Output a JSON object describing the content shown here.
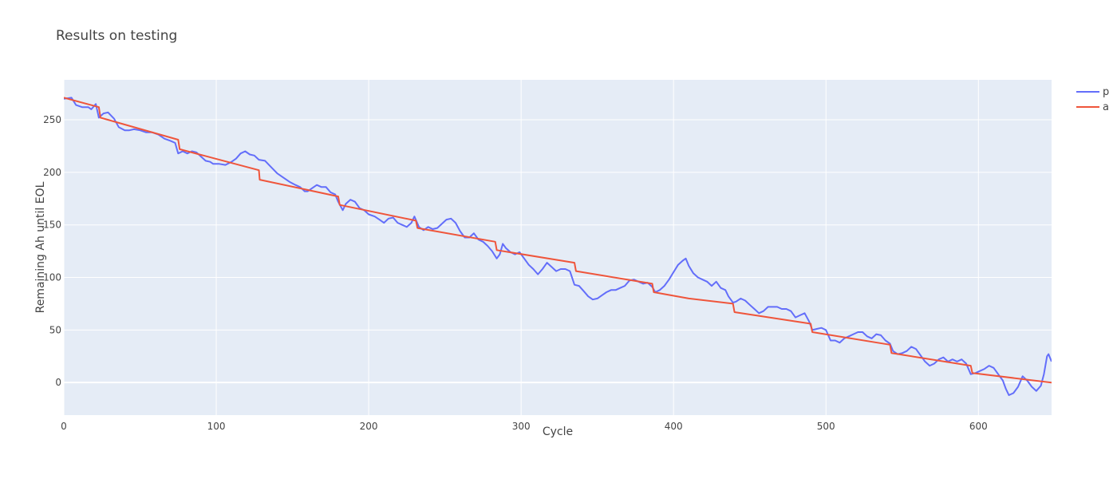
{
  "chart_data": {
    "type": "line",
    "title": "Results on testing",
    "xlabel": "Cycle",
    "ylabel": "Remaining Ah until EOL",
    "xlim": [
      0,
      648
    ],
    "ylim": [
      -31,
      288
    ],
    "xticks": [
      0,
      100,
      200,
      300,
      400,
      500,
      600
    ],
    "yticks": [
      0,
      50,
      100,
      150,
      200,
      250
    ],
    "grid": true,
    "legend_position": "top-right",
    "background_color": "#e5ecf6",
    "series": [
      {
        "name": "p",
        "color": "#636efa",
        "points": [
          [
            0,
            270
          ],
          [
            5,
            271
          ],
          [
            8,
            264
          ],
          [
            12,
            262
          ],
          [
            16,
            262
          ],
          [
            18,
            260
          ],
          [
            21,
            265
          ],
          [
            23,
            252
          ],
          [
            26,
            256
          ],
          [
            29,
            257
          ],
          [
            33,
            251
          ],
          [
            36,
            243
          ],
          [
            40,
            240
          ],
          [
            43,
            240
          ],
          [
            46,
            241
          ],
          [
            50,
            240
          ],
          [
            54,
            238
          ],
          [
            58,
            238
          ],
          [
            62,
            236
          ],
          [
            66,
            232
          ],
          [
            70,
            230
          ],
          [
            73,
            228
          ],
          [
            75,
            218
          ],
          [
            78,
            220
          ],
          [
            81,
            218
          ],
          [
            84,
            220
          ],
          [
            87,
            219
          ],
          [
            90,
            215
          ],
          [
            93,
            211
          ],
          [
            96,
            210
          ],
          [
            98,
            208
          ],
          [
            102,
            208
          ],
          [
            106,
            207
          ],
          [
            110,
            210
          ],
          [
            113,
            213
          ],
          [
            116,
            218
          ],
          [
            119,
            220
          ],
          [
            122,
            217
          ],
          [
            125,
            216
          ],
          [
            128,
            212
          ],
          [
            132,
            211
          ],
          [
            136,
            205
          ],
          [
            140,
            199
          ],
          [
            144,
            195
          ],
          [
            148,
            191
          ],
          [
            152,
            188
          ],
          [
            155,
            186
          ],
          [
            158,
            182
          ],
          [
            160,
            182
          ],
          [
            163,
            185
          ],
          [
            166,
            188
          ],
          [
            169,
            186
          ],
          [
            172,
            186
          ],
          [
            175,
            181
          ],
          [
            178,
            179
          ],
          [
            180,
            172
          ],
          [
            183,
            164
          ],
          [
            185,
            170
          ],
          [
            188,
            174
          ],
          [
            191,
            172
          ],
          [
            194,
            166
          ],
          [
            197,
            164
          ],
          [
            200,
            160
          ],
          [
            204,
            158
          ],
          [
            207,
            155
          ],
          [
            210,
            152
          ],
          [
            213,
            156
          ],
          [
            216,
            157
          ],
          [
            219,
            152
          ],
          [
            222,
            150
          ],
          [
            225,
            148
          ],
          [
            228,
            152
          ],
          [
            230,
            158
          ],
          [
            233,
            148
          ],
          [
            236,
            145
          ],
          [
            239,
            148
          ],
          [
            242,
            146
          ],
          [
            245,
            147
          ],
          [
            248,
            151
          ],
          [
            251,
            155
          ],
          [
            254,
            156
          ],
          [
            257,
            152
          ],
          [
            260,
            144
          ],
          [
            263,
            138
          ],
          [
            266,
            138
          ],
          [
            269,
            142
          ],
          [
            272,
            136
          ],
          [
            275,
            134
          ],
          [
            278,
            130
          ],
          [
            281,
            125
          ],
          [
            284,
            118
          ],
          [
            286,
            122
          ],
          [
            288,
            132
          ],
          [
            290,
            128
          ],
          [
            293,
            124
          ],
          [
            296,
            122
          ],
          [
            299,
            124
          ],
          [
            302,
            118
          ],
          [
            305,
            112
          ],
          [
            308,
            108
          ],
          [
            311,
            103
          ],
          [
            314,
            108
          ],
          [
            317,
            114
          ],
          [
            320,
            110
          ],
          [
            323,
            106
          ],
          [
            326,
            108
          ],
          [
            329,
            108
          ],
          [
            332,
            106
          ],
          [
            335,
            93
          ],
          [
            338,
            92
          ],
          [
            341,
            87
          ],
          [
            344,
            82
          ],
          [
            347,
            79
          ],
          [
            350,
            80
          ],
          [
            353,
            83
          ],
          [
            356,
            86
          ],
          [
            359,
            88
          ],
          [
            362,
            88
          ],
          [
            365,
            90
          ],
          [
            368,
            92
          ],
          [
            371,
            97
          ],
          [
            374,
            98
          ],
          [
            377,
            96
          ],
          [
            380,
            94
          ],
          [
            383,
            95
          ],
          [
            386,
            91
          ],
          [
            388,
            86
          ],
          [
            391,
            88
          ],
          [
            394,
            92
          ],
          [
            397,
            98
          ],
          [
            400,
            105
          ],
          [
            403,
            112
          ],
          [
            406,
            116
          ],
          [
            408,
            118
          ],
          [
            410,
            111
          ],
          [
            413,
            104
          ],
          [
            416,
            100
          ],
          [
            419,
            98
          ],
          [
            422,
            96
          ],
          [
            425,
            92
          ],
          [
            428,
            96
          ],
          [
            431,
            90
          ],
          [
            434,
            88
          ],
          [
            436,
            82
          ],
          [
            439,
            76
          ],
          [
            441,
            77
          ],
          [
            444,
            80
          ],
          [
            447,
            78
          ],
          [
            450,
            74
          ],
          [
            453,
            70
          ],
          [
            456,
            66
          ],
          [
            459,
            68
          ],
          [
            462,
            72
          ],
          [
            465,
            72
          ],
          [
            468,
            72
          ],
          [
            471,
            70
          ],
          [
            474,
            70
          ],
          [
            477,
            68
          ],
          [
            480,
            62
          ],
          [
            483,
            64
          ],
          [
            486,
            66
          ],
          [
            489,
            58
          ],
          [
            491,
            50
          ],
          [
            494,
            51
          ],
          [
            497,
            52
          ],
          [
            500,
            50
          ],
          [
            503,
            40
          ],
          [
            506,
            40
          ],
          [
            509,
            38
          ],
          [
            512,
            42
          ],
          [
            515,
            44
          ],
          [
            518,
            46
          ],
          [
            521,
            48
          ],
          [
            524,
            48
          ],
          [
            527,
            44
          ],
          [
            530,
            42
          ],
          [
            533,
            46
          ],
          [
            536,
            45
          ],
          [
            539,
            40
          ],
          [
            542,
            37
          ],
          [
            544,
            30
          ],
          [
            547,
            27
          ],
          [
            550,
            28
          ],
          [
            553,
            30
          ],
          [
            556,
            34
          ],
          [
            559,
            32
          ],
          [
            562,
            26
          ],
          [
            565,
            20
          ],
          [
            568,
            16
          ],
          [
            571,
            18
          ],
          [
            574,
            22
          ],
          [
            577,
            24
          ],
          [
            580,
            20
          ],
          [
            583,
            22
          ],
          [
            586,
            20
          ],
          [
            589,
            22
          ],
          [
            592,
            18
          ],
          [
            595,
            8
          ],
          [
            598,
            9
          ],
          [
            601,
            11
          ],
          [
            604,
            13
          ],
          [
            607,
            16
          ],
          [
            610,
            14
          ],
          [
            613,
            8
          ],
          [
            616,
            2
          ],
          [
            618,
            -6
          ],
          [
            620,
            -12
          ],
          [
            623,
            -10
          ],
          [
            626,
            -4
          ],
          [
            629,
            6
          ],
          [
            632,
            2
          ],
          [
            635,
            -4
          ],
          [
            638,
            -8
          ],
          [
            641,
            -3
          ],
          [
            643,
            8
          ],
          [
            645,
            25
          ],
          [
            646,
            27
          ],
          [
            648,
            20
          ]
        ]
      },
      {
        "name": "a",
        "color": "#ef553b",
        "points": [
          [
            0,
            271
          ],
          [
            23,
            262
          ],
          [
            24,
            252
          ],
          [
            75,
            231
          ],
          [
            76,
            222
          ],
          [
            128,
            202
          ],
          [
            128.5,
            193
          ],
          [
            180,
            177
          ],
          [
            181,
            169
          ],
          [
            231,
            154
          ],
          [
            232,
            147
          ],
          [
            283,
            134
          ],
          [
            284,
            126
          ],
          [
            335,
            114
          ],
          [
            336,
            106
          ],
          [
            386,
            94
          ],
          [
            387,
            86
          ],
          [
            410,
            80
          ],
          [
            439,
            75
          ],
          [
            440,
            67
          ],
          [
            490,
            56
          ],
          [
            491,
            48
          ],
          [
            542,
            36
          ],
          [
            543,
            28
          ],
          [
            595,
            16
          ],
          [
            596,
            9
          ],
          [
            648,
            0
          ]
        ]
      }
    ]
  }
}
